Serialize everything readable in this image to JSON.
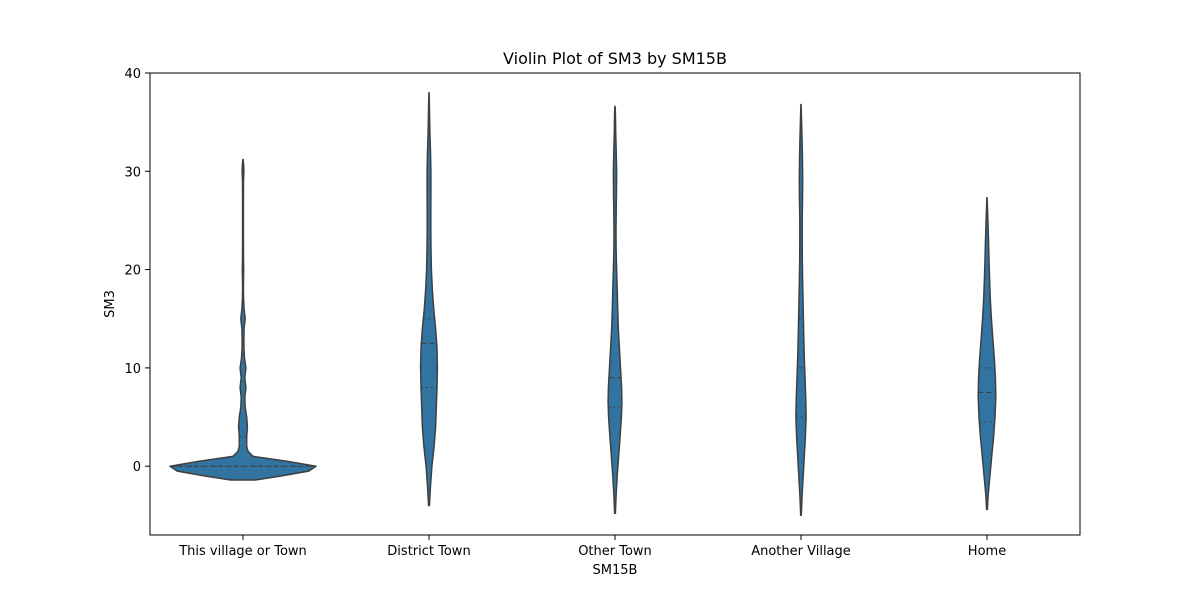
{
  "chart_data": {
    "type": "violin",
    "title": "Violin Plot of SM3 by SM15B",
    "xlabel": "SM15B",
    "ylabel": "SM3",
    "ylim": [
      -7,
      40
    ],
    "yticks": [
      0,
      10,
      20,
      30,
      40
    ],
    "grid": false,
    "fill_color": "#3274a1",
    "edge_color": "#3f3f3f",
    "categories": [
      "This village or Town",
      "District Town",
      "Other Town",
      "Another Village",
      "Home"
    ],
    "violins": [
      {
        "category": "This village or Town",
        "quartiles": {
          "q1": 0,
          "median": 0,
          "q3": 3
        },
        "profile": [
          [
            -1.4,
            0.17
          ],
          [
            -1,
            0.52
          ],
          [
            -0.5,
            0.9
          ],
          [
            0,
            1.0
          ],
          [
            0.5,
            0.6
          ],
          [
            1,
            0.14
          ],
          [
            1.5,
            0.07
          ],
          [
            2,
            0.05
          ],
          [
            3,
            0.05
          ],
          [
            4,
            0.06
          ],
          [
            5,
            0.05
          ],
          [
            6,
            0.03
          ],
          [
            7,
            0.025
          ],
          [
            8,
            0.04
          ],
          [
            9,
            0.025
          ],
          [
            10,
            0.04
          ],
          [
            11,
            0.02
          ],
          [
            12,
            0.012
          ],
          [
            13,
            0.012
          ],
          [
            14,
            0.015
          ],
          [
            15,
            0.03
          ],
          [
            16,
            0.015
          ],
          [
            17,
            0.008
          ],
          [
            18,
            0.006
          ],
          [
            19,
            0.007
          ],
          [
            20,
            0.01
          ],
          [
            21,
            0.007
          ],
          [
            23,
            0.006
          ],
          [
            25,
            0.006
          ],
          [
            27,
            0.006
          ],
          [
            29,
            0.007
          ],
          [
            30,
            0.012
          ],
          [
            30.7,
            0.008
          ],
          [
            31.2,
            0.002
          ]
        ]
      },
      {
        "category": "District Town",
        "quartiles": {
          "q1": 8,
          "median": 12.5,
          "q3": 15
        },
        "profile": [
          [
            -4,
            0.005
          ],
          [
            -2,
            0.02
          ],
          [
            0,
            0.04
          ],
          [
            2,
            0.07
          ],
          [
            4,
            0.09
          ],
          [
            6,
            0.1
          ],
          [
            8,
            0.11
          ],
          [
            10,
            0.115
          ],
          [
            12,
            0.11
          ],
          [
            14,
            0.09
          ],
          [
            16,
            0.065
          ],
          [
            18,
            0.045
          ],
          [
            20,
            0.033
          ],
          [
            22,
            0.027
          ],
          [
            24,
            0.025
          ],
          [
            26,
            0.025
          ],
          [
            28,
            0.026
          ],
          [
            30,
            0.026
          ],
          [
            32,
            0.02
          ],
          [
            34,
            0.012
          ],
          [
            36,
            0.007
          ],
          [
            38,
            0.002
          ]
        ]
      },
      {
        "category": "Other Town",
        "quartiles": {
          "q1": 6,
          "median": 9,
          "q3": 15
        },
        "profile": [
          [
            -4.8,
            0.005
          ],
          [
            -3,
            0.015
          ],
          [
            -1,
            0.03
          ],
          [
            1,
            0.05
          ],
          [
            3,
            0.07
          ],
          [
            5,
            0.088
          ],
          [
            6.5,
            0.095
          ],
          [
            8,
            0.09
          ],
          [
            10,
            0.075
          ],
          [
            12,
            0.06
          ],
          [
            14,
            0.045
          ],
          [
            16,
            0.037
          ],
          [
            18,
            0.03
          ],
          [
            20,
            0.022
          ],
          [
            22,
            0.015
          ],
          [
            24,
            0.014
          ],
          [
            26,
            0.017
          ],
          [
            28,
            0.021
          ],
          [
            30,
            0.022
          ],
          [
            32,
            0.016
          ],
          [
            34,
            0.01
          ],
          [
            36,
            0.005
          ],
          [
            36.6,
            0.002
          ]
        ]
      },
      {
        "category": "Another Village",
        "quartiles": {
          "q1": 5,
          "median": 10,
          "q3": 15
        },
        "profile": [
          [
            -5,
            0.004
          ],
          [
            -3,
            0.015
          ],
          [
            -1,
            0.03
          ],
          [
            1,
            0.045
          ],
          [
            3,
            0.06
          ],
          [
            5,
            0.07
          ],
          [
            7,
            0.065
          ],
          [
            9,
            0.055
          ],
          [
            11,
            0.045
          ],
          [
            13,
            0.038
          ],
          [
            15,
            0.033
          ],
          [
            17,
            0.028
          ],
          [
            19,
            0.022
          ],
          [
            21,
            0.018
          ],
          [
            23,
            0.016
          ],
          [
            25,
            0.017
          ],
          [
            27,
            0.02
          ],
          [
            29,
            0.023
          ],
          [
            31,
            0.021
          ],
          [
            33,
            0.015
          ],
          [
            35,
            0.008
          ],
          [
            36.8,
            0.002
          ]
        ]
      },
      {
        "category": "Home",
        "quartiles": {
          "q1": 4.5,
          "median": 7.5,
          "q3": 10
        },
        "profile": [
          [
            -4.4,
            0.005
          ],
          [
            -3,
            0.015
          ],
          [
            -1,
            0.04
          ],
          [
            1,
            0.065
          ],
          [
            3,
            0.09
          ],
          [
            5,
            0.11
          ],
          [
            7,
            0.12
          ],
          [
            9,
            0.115
          ],
          [
            11,
            0.1
          ],
          [
            13,
            0.08
          ],
          [
            15,
            0.06
          ],
          [
            17,
            0.045
          ],
          [
            19,
            0.035
          ],
          [
            21,
            0.028
          ],
          [
            23,
            0.02
          ],
          [
            25,
            0.012
          ],
          [
            27.3,
            0.002
          ]
        ]
      }
    ]
  }
}
